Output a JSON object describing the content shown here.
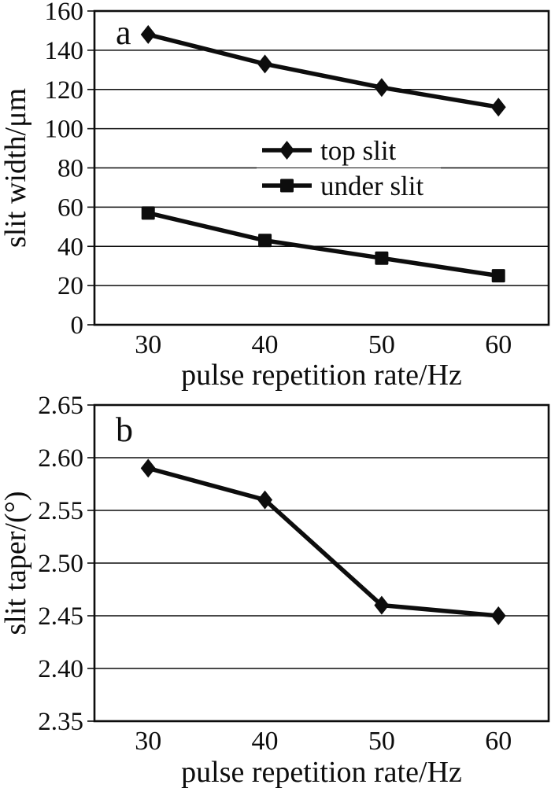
{
  "figure": {
    "background": "#ffffff",
    "ink_color": "#0d0d0d"
  },
  "chart_data": [
    {
      "id": "a",
      "panel_label": "a",
      "type": "line",
      "title": "",
      "xlabel": "pulse repetition rate/Hz",
      "ylabel": "slit width/μm",
      "x": [
        30,
        40,
        50,
        60
      ],
      "xtick_labels": [
        "30",
        "40",
        "50",
        "60"
      ],
      "xlim": [
        25.4,
        64.3
      ],
      "ylim": [
        0,
        160
      ],
      "ytick_labels": [
        "0",
        "20",
        "40",
        "60",
        "80",
        "100",
        "120",
        "140",
        "160"
      ],
      "grid": true,
      "legend": {
        "visible": true,
        "position": "inside-upper-middle"
      },
      "series": [
        {
          "name": "top slit",
          "marker": "diamond",
          "values": [
            148,
            133,
            121,
            111
          ]
        },
        {
          "name": "under slit",
          "marker": "square",
          "values": [
            57,
            43,
            34,
            25
          ]
        }
      ]
    },
    {
      "id": "b",
      "panel_label": "b",
      "type": "line",
      "title": "",
      "xlabel": "pulse repetition rate/Hz",
      "ylabel": "slit taper/(°)",
      "x": [
        30,
        40,
        50,
        60
      ],
      "xtick_labels": [
        "30",
        "40",
        "50",
        "60"
      ],
      "xlim": [
        25.4,
        64.3
      ],
      "ylim": [
        2.35,
        2.65
      ],
      "ytick_labels": [
        "2.35",
        "2.40",
        "2.45",
        "2.50",
        "2.55",
        "2.60",
        "2.65"
      ],
      "grid": true,
      "legend": {
        "visible": false,
        "position": "none"
      },
      "series": [
        {
          "name": "slit taper",
          "marker": "diamond",
          "values": [
            2.59,
            2.56,
            2.46,
            2.45
          ]
        }
      ]
    }
  ]
}
